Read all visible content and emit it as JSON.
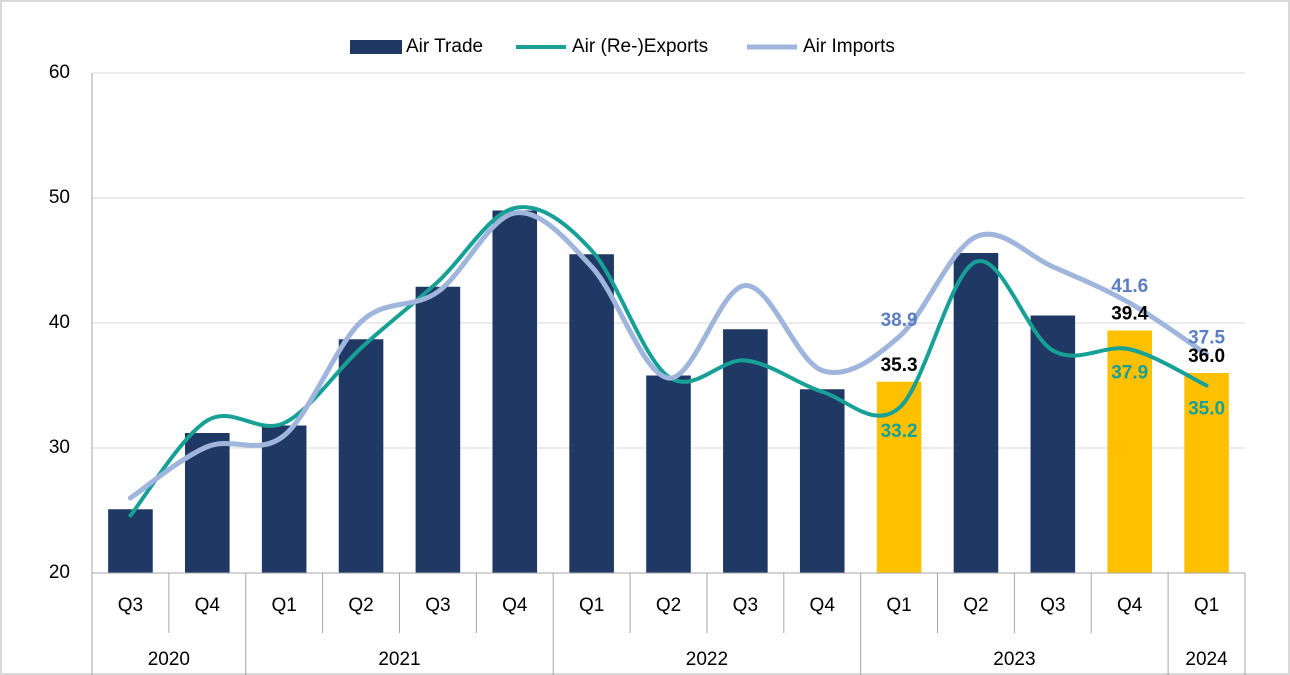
{
  "chart_data": {
    "type": "bar",
    "categories": [
      "Q3",
      "Q4",
      "Q1",
      "Q2",
      "Q3",
      "Q4",
      "Q1",
      "Q2",
      "Q3",
      "Q4",
      "Q1",
      "Q2",
      "Q3",
      "Q4",
      "Q1"
    ],
    "groups": [
      {
        "name": "2020",
        "count": 2
      },
      {
        "name": "2021",
        "count": 4
      },
      {
        "name": "2022",
        "count": 4
      },
      {
        "name": "2023",
        "count": 4
      },
      {
        "name": "2024",
        "count": 1
      }
    ],
    "series": [
      {
        "name": "Air Trade",
        "type": "bar",
        "color": "#1f3864",
        "colors": [
          "#1f3864",
          "#1f3864",
          "#1f3864",
          "#1f3864",
          "#1f3864",
          "#1f3864",
          "#1f3864",
          "#1f3864",
          "#1f3864",
          "#1f3864",
          "#ffc000",
          "#1f3864",
          "#1f3864",
          "#ffc000",
          "#ffc000"
        ],
        "label_color": "#000000",
        "values": [
          25.1,
          31.2,
          31.8,
          38.7,
          42.9,
          49.0,
          45.5,
          35.8,
          39.5,
          34.7,
          35.3,
          45.6,
          40.6,
          39.4,
          36.0
        ],
        "value_labels": [
          null,
          null,
          null,
          null,
          null,
          null,
          null,
          null,
          null,
          null,
          "35.3",
          null,
          null,
          "39.4",
          "36.0"
        ]
      },
      {
        "name": "Air (Re-)Exports",
        "type": "line",
        "color": "#17a096",
        "label_color": "#17a096",
        "values": [
          24.6,
          32.2,
          32.0,
          38.0,
          43.3,
          49.2,
          45.8,
          35.7,
          37.0,
          34.5,
          33.2,
          44.9,
          37.8,
          37.9,
          35.0
        ],
        "value_labels": [
          null,
          null,
          null,
          null,
          null,
          null,
          null,
          null,
          null,
          null,
          "33.2",
          null,
          null,
          "37.9",
          "35.0"
        ]
      },
      {
        "name": "Air Imports",
        "type": "line",
        "color": "#9fb5dc",
        "label_color": "#5b7fc0",
        "values": [
          26.0,
          30.1,
          31.0,
          40.1,
          42.5,
          48.8,
          44.5,
          35.6,
          43.0,
          36.2,
          38.9,
          46.9,
          44.5,
          41.6,
          37.5
        ],
        "value_labels": [
          null,
          null,
          null,
          null,
          null,
          null,
          null,
          null,
          null,
          null,
          "38.9",
          null,
          null,
          "41.6",
          "37.5"
        ]
      }
    ],
    "ylim": [
      20,
      60
    ],
    "yticks": [
      20,
      30,
      40,
      50,
      60
    ],
    "grid": true,
    "legend": "top"
  }
}
